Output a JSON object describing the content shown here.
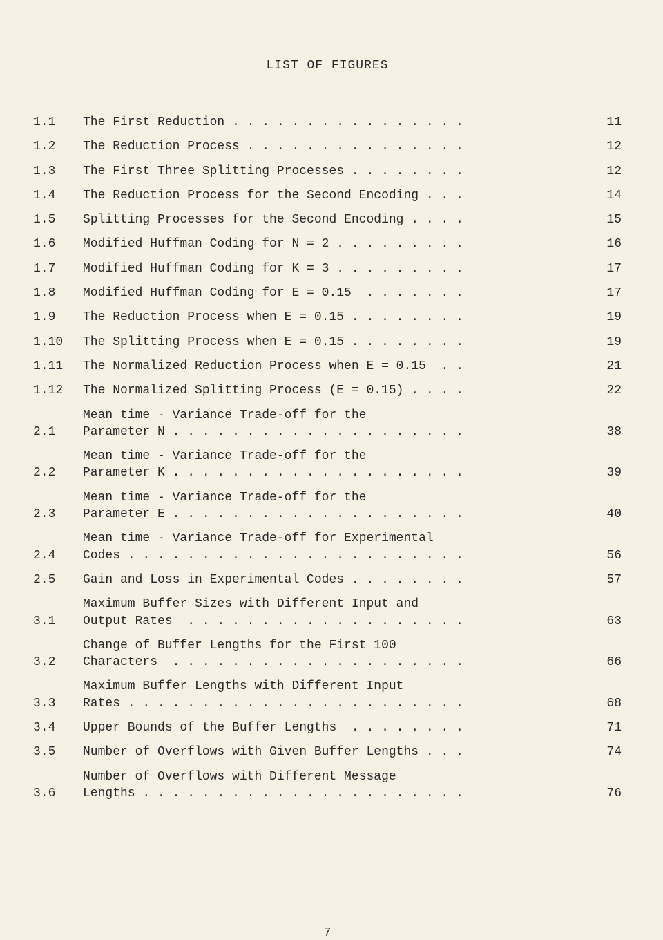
{
  "title": "LIST OF FIGURES",
  "page_number": "7",
  "entries": [
    {
      "num": "1.1",
      "text": "The First Reduction . . . . . . . . . . . . . . . .",
      "page": "11"
    },
    {
      "num": "1.2",
      "text": "The Reduction Process . . . . . . . . . . . . . . .",
      "page": "12"
    },
    {
      "num": "1.3",
      "text": "The First Three Splitting Processes . . . . . . . .",
      "page": "12"
    },
    {
      "num": "1.4",
      "text": "The Reduction Process for the Second Encoding . . .",
      "page": "14"
    },
    {
      "num": "1.5",
      "text": "Splitting Processes for the Second Encoding . . . .",
      "page": "15"
    },
    {
      "num": "1.6",
      "text": "Modified Huffman Coding for N = 2 . . . . . . . . .",
      "page": "16"
    },
    {
      "num": "1.7",
      "text": "Modified Huffman Coding for K = 3 . . . . . . . . .",
      "page": "17"
    },
    {
      "num": "1.8",
      "text": "Modified Huffman Coding for E = 0.15  . . . . . . .",
      "page": "17"
    },
    {
      "num": "1.9",
      "text": "The Reduction Process when E = 0.15 . . . . . . . .",
      "page": "19"
    },
    {
      "num": "1.10",
      "text": "The Splitting Process when E = 0.15 . . . . . . . .",
      "page": "19"
    },
    {
      "num": "1.11",
      "text": "The Normalized Reduction Process when E = 0.15  . .",
      "page": "21"
    },
    {
      "num": "1.12",
      "text": "The Normalized Splitting Process (E = 0.15) . . . .",
      "page": "22"
    },
    {
      "num": "2.1",
      "text": "Mean time - Variance Trade-off for the\nParameter N . . . . . . . . . . . . . . . . . . . .",
      "page": "38"
    },
    {
      "num": "2.2",
      "text": "Mean time - Variance Trade-off for the\nParameter K . . . . . . . . . . . . . . . . . . . .",
      "page": "39"
    },
    {
      "num": "2.3",
      "text": "Mean time - Variance Trade-off for the\nParameter E . . . . . . . . . . . . . . . . . . . .",
      "page": "40"
    },
    {
      "num": "2.4",
      "text": "Mean time - Variance Trade-off for Experimental\nCodes . . . . . . . . . . . . . . . . . . . . . . .",
      "page": "56"
    },
    {
      "num": "2.5",
      "text": "Gain and Loss in Experimental Codes . . . . . . . .",
      "page": "57"
    },
    {
      "num": "3.1",
      "text": "Maximum Buffer Sizes with Different Input and\nOutput Rates  . . . . . . . . . . . . . . . . . . .",
      "page": "63"
    },
    {
      "num": "3.2",
      "text": "Change of Buffer Lengths for the First 100\nCharacters  . . . . . . . . . . . . . . . . . . . .",
      "page": "66"
    },
    {
      "num": "3.3",
      "text": "Maximum Buffer Lengths with Different Input\nRates . . . . . . . . . . . . . . . . . . . . . . .",
      "page": "68"
    },
    {
      "num": "3.4",
      "text": "Upper Bounds of the Buffer Lengths  . . . . . . . .",
      "page": "71"
    },
    {
      "num": "3.5",
      "text": "Number of Overflows with Given Buffer Lengths . . .",
      "page": "74"
    },
    {
      "num": "3.6",
      "text": "Number of Overflows with Different Message\nLengths . . . . . . . . . . . . . . . . . . . . . .",
      "page": "76"
    }
  ]
}
